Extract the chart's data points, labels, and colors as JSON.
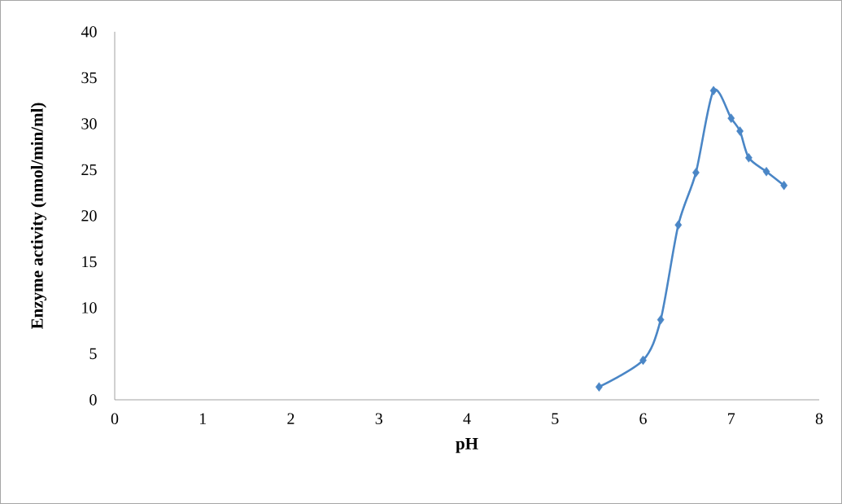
{
  "chart_data": {
    "type": "line",
    "xlabel": "pH",
    "ylabel": "Enzyme activity (nmol/min/ml)",
    "x": [
      5.5,
      6.0,
      6.2,
      6.4,
      6.6,
      6.8,
      7.0,
      7.1,
      7.2,
      7.4,
      7.6
    ],
    "series": [
      {
        "color": "#4a86c6",
        "values": [
          1.4,
          4.3,
          8.7,
          19,
          24.7,
          33.6,
          30.6,
          29.2,
          26.3,
          24.8,
          23.3
        ]
      }
    ],
    "xlim": [
      0,
      8
    ],
    "xticks": [
      0,
      1,
      2,
      3,
      4,
      5,
      6,
      7,
      8
    ],
    "ylim": [
      0,
      40
    ],
    "yticks": [
      0,
      5,
      10,
      15,
      20,
      25,
      30,
      35,
      40
    ],
    "marker": "diamond",
    "line_style": "solid",
    "grid": false
  }
}
